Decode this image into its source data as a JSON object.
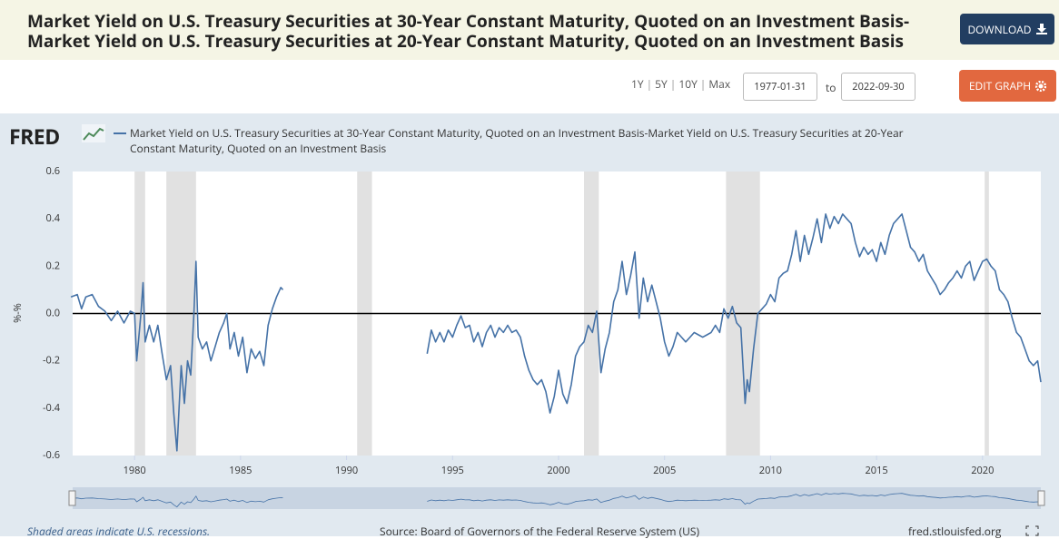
{
  "header": {
    "title": [
      "Market Yield on U.S. Treasury Securities at 30-Year Constant Maturity, Quoted on an Investment Basis-",
      "Market Yield on U.S. Treasury Securities at 20-Year Constant Maturity, Quoted on an Investment Basis"
    ],
    "download": "DOWNLOAD",
    "edit": "EDIT GRAPH",
    "ranges": [
      "1Y",
      "5Y",
      "10Y",
      "Max"
    ],
    "start": "1977-01-31",
    "to": "to",
    "end": "2022-09-30"
  },
  "logo": "FRED",
  "chart_data": {
    "type": "line",
    "ylabel": "%-%",
    "x": [
      1977.0,
      1977.3,
      1977.5,
      1977.7,
      1978.0,
      1978.3,
      1978.6,
      1978.9,
      1979.2,
      1979.5,
      1979.8,
      1980.0,
      1980.1,
      1980.3,
      1980.4,
      1980.5,
      1980.7,
      1980.9,
      1981.1,
      1981.3,
      1981.5,
      1981.7,
      1981.85,
      1982.0,
      1982.2,
      1982.35,
      1982.5,
      1982.65,
      1982.8,
      1982.9,
      1983.0,
      1983.2,
      1983.4,
      1983.6,
      1983.8,
      1984.0,
      1984.2,
      1984.35,
      1984.5,
      1984.7,
      1984.9,
      1985.1,
      1985.3,
      1985.5,
      1985.7,
      1985.9,
      1986.1,
      1986.3,
      1986.5,
      1986.7,
      1986.9,
      1987.0,
      1990.0,
      1993.8,
      1994.0,
      1994.2,
      1994.4,
      1994.6,
      1994.8,
      1995.0,
      1995.2,
      1995.4,
      1995.6,
      1995.8,
      1996.0,
      1996.2,
      1996.4,
      1996.6,
      1996.8,
      1997.0,
      1997.2,
      1997.4,
      1997.6,
      1997.8,
      1998.0,
      1998.2,
      1998.4,
      1998.6,
      1998.8,
      1999.0,
      1999.2,
      1999.4,
      1999.6,
      1999.8,
      2000.0,
      2000.2,
      2000.4,
      2000.6,
      2000.8,
      2001.0,
      2001.2,
      2001.4,
      2001.6,
      2001.8,
      2002.0,
      2002.2,
      2002.4,
      2002.6,
      2002.8,
      2003.0,
      2003.2,
      2003.4,
      2003.6,
      2003.8,
      2004.0,
      2004.2,
      2004.4,
      2004.6,
      2004.8,
      2005.0,
      2005.2,
      2005.4,
      2005.6,
      2005.8,
      2006.0,
      2006.2,
      2006.4,
      2006.6,
      2006.8,
      2007.0,
      2007.2,
      2007.4,
      2007.6,
      2007.8,
      2008.0,
      2008.2,
      2008.4,
      2008.6,
      2008.8,
      2008.9,
      2009.0,
      2009.2,
      2009.4,
      2009.6,
      2009.8,
      2010.0,
      2010.2,
      2010.4,
      2010.6,
      2010.8,
      2011.0,
      2011.2,
      2011.4,
      2011.6,
      2011.8,
      2012.0,
      2012.2,
      2012.4,
      2012.6,
      2012.8,
      2013.0,
      2013.2,
      2013.4,
      2013.6,
      2013.8,
      2014.0,
      2014.2,
      2014.4,
      2014.6,
      2014.8,
      2015.0,
      2015.2,
      2015.4,
      2015.6,
      2015.8,
      2016.0,
      2016.2,
      2016.4,
      2016.6,
      2016.8,
      2017.0,
      2017.2,
      2017.4,
      2017.6,
      2017.8,
      2018.0,
      2018.2,
      2018.4,
      2018.6,
      2018.8,
      2019.0,
      2019.2,
      2019.4,
      2019.6,
      2019.8,
      2020.0,
      2020.2,
      2020.4,
      2020.6,
      2020.8,
      2021.0,
      2021.2,
      2021.4,
      2021.6,
      2021.8,
      2022.0,
      2022.2,
      2022.4,
      2022.6,
      2022.75
    ],
    "series": [
      {
        "name": "Market Yield on U.S. Treasury Securities at 30-Year Constant Maturity, Quoted on an Investment Basis-Market Yield on U.S. Treasury Securities at 20-Year Constant Maturity, Quoted on an Investment Basis",
        "color": "#4572a7",
        "values": [
          0.07,
          0.08,
          0.02,
          0.07,
          0.08,
          0.03,
          0.01,
          -0.03,
          0.01,
          -0.04,
          0.01,
          0.0,
          -0.2,
          0.0,
          0.13,
          -0.12,
          -0.05,
          -0.12,
          -0.05,
          -0.17,
          -0.28,
          -0.22,
          -0.42,
          -0.58,
          -0.22,
          -0.38,
          -0.2,
          -0.26,
          0.0,
          0.22,
          -0.1,
          -0.15,
          -0.12,
          -0.2,
          -0.14,
          -0.08,
          -0.04,
          0.0,
          -0.15,
          -0.08,
          -0.18,
          -0.1,
          -0.25,
          -0.15,
          -0.19,
          -0.16,
          -0.22,
          -0.05,
          0.02,
          0.07,
          0.11,
          0.1,
          null,
          -0.17,
          -0.07,
          -0.12,
          -0.08,
          -0.12,
          -0.07,
          -0.1,
          -0.05,
          -0.01,
          -0.06,
          -0.05,
          -0.12,
          -0.08,
          -0.14,
          -0.08,
          -0.05,
          -0.1,
          -0.06,
          -0.08,
          -0.05,
          -0.08,
          -0.07,
          -0.1,
          -0.18,
          -0.24,
          -0.28,
          -0.3,
          -0.28,
          -0.33,
          -0.42,
          -0.35,
          -0.24,
          -0.34,
          -0.38,
          -0.3,
          -0.18,
          -0.14,
          -0.12,
          -0.05,
          -0.08,
          0.01,
          -0.25,
          -0.15,
          -0.08,
          0.05,
          0.1,
          0.22,
          0.08,
          0.16,
          0.26,
          -0.02,
          0.15,
          0.05,
          0.12,
          0.05,
          -0.02,
          -0.12,
          -0.18,
          -0.14,
          -0.08,
          -0.1,
          -0.12,
          -0.1,
          -0.08,
          -0.09,
          -0.1,
          -0.09,
          -0.08,
          -0.05,
          -0.08,
          0.02,
          -0.02,
          0.03,
          -0.04,
          -0.06,
          -0.38,
          -0.28,
          -0.33,
          -0.15,
          0.0,
          0.02,
          0.04,
          0.08,
          0.05,
          0.15,
          0.17,
          0.18,
          0.25,
          0.35,
          0.22,
          0.33,
          0.25,
          0.32,
          0.4,
          0.3,
          0.42,
          0.36,
          0.41,
          0.38,
          0.42,
          0.4,
          0.38,
          0.3,
          0.24,
          0.28,
          0.25,
          0.27,
          0.22,
          0.3,
          0.25,
          0.33,
          0.38,
          0.4,
          0.42,
          0.35,
          0.28,
          0.26,
          0.22,
          0.25,
          0.18,
          0.15,
          0.12,
          0.08,
          0.1,
          0.13,
          0.15,
          0.18,
          0.15,
          0.2,
          0.22,
          0.14,
          0.18,
          0.22,
          0.23,
          0.2,
          0.18,
          0.1,
          0.08,
          0.05,
          -0.02,
          -0.08,
          -0.1,
          -0.15,
          -0.2,
          -0.22,
          -0.2,
          -0.29
        ]
      }
    ],
    "recessions": [
      [
        1980.0,
        1980.5
      ],
      [
        1981.5,
        1982.9
      ],
      [
        1990.5,
        1991.2
      ],
      [
        2001.2,
        2001.9
      ],
      [
        2007.9,
        2009.5
      ],
      [
        2020.1,
        2020.3
      ]
    ],
    "xlim": [
      1977.08,
      2022.75
    ],
    "xticks": [
      1980,
      1985,
      1990,
      1995,
      2000,
      2005,
      2010,
      2015,
      2020
    ],
    "ylim": [
      -0.6,
      0.6
    ],
    "yticks": [
      -0.6,
      -0.4,
      -0.2,
      {
        "value": 0,
        "label": "0.0"
      },
      0.2,
      0.4,
      0.6
    ],
    "grid": false
  },
  "footer": {
    "note": "Shaded areas indicate U.S. recessions.",
    "source": "Source: Board of Governors of the Federal Reserve System (US)",
    "site": "fred.stlouisfed.org"
  }
}
